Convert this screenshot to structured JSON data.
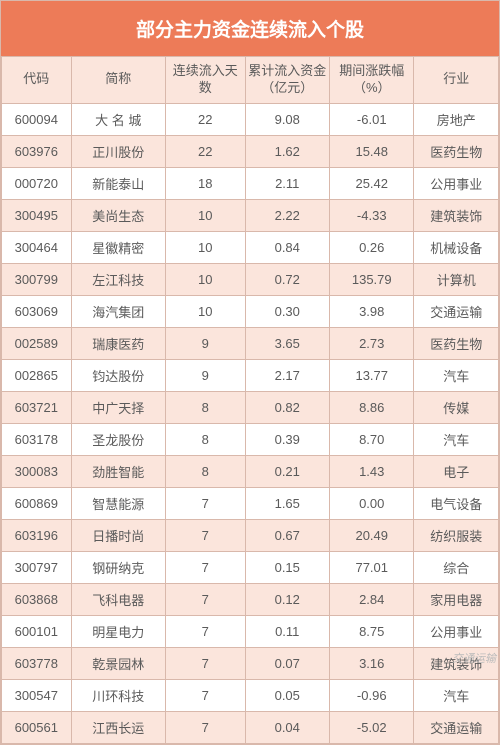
{
  "title": "部分主力资金连续流入个股",
  "title_bg": "#ed7b58",
  "title_color": "#ffffff",
  "title_fontsize": 19,
  "header_bg": "#fbe5dc",
  "header_fontsize": 13,
  "cell_fontsize": 13,
  "row_bg_even": "#ffffff",
  "row_bg_odd": "#fbe5dc",
  "border_color": "#d9b8ab",
  "text_color": "#5a5a5a",
  "col_widths": [
    "14%",
    "19%",
    "16%",
    "17%",
    "17%",
    "17%"
  ],
  "columns": [
    "代码",
    "简称",
    "连续流入天数",
    "累计流入资金（亿元）",
    "期间涨跌幅（%）",
    "行业"
  ],
  "rows": [
    [
      "600094",
      "大 名 城",
      "22",
      "9.08",
      "-6.01",
      "房地产"
    ],
    [
      "603976",
      "正川股份",
      "22",
      "1.62",
      "15.48",
      "医药生物"
    ],
    [
      "000720",
      "新能泰山",
      "18",
      "2.11",
      "25.42",
      "公用事业"
    ],
    [
      "300495",
      "美尚生态",
      "10",
      "2.22",
      "-4.33",
      "建筑装饰"
    ],
    [
      "300464",
      "星徽精密",
      "10",
      "0.84",
      "0.26",
      "机械设备"
    ],
    [
      "300799",
      "左江科技",
      "10",
      "0.72",
      "135.79",
      "计算机"
    ],
    [
      "603069",
      "海汽集团",
      "10",
      "0.30",
      "3.98",
      "交通运输"
    ],
    [
      "002589",
      "瑞康医药",
      "9",
      "3.65",
      "2.73",
      "医药生物"
    ],
    [
      "002865",
      "钧达股份",
      "9",
      "2.17",
      "13.77",
      "汽车"
    ],
    [
      "603721",
      "中广天择",
      "8",
      "0.82",
      "8.86",
      "传媒"
    ],
    [
      "603178",
      "圣龙股份",
      "8",
      "0.39",
      "8.70",
      "汽车"
    ],
    [
      "300083",
      "劲胜智能",
      "8",
      "0.21",
      "1.43",
      "电子"
    ],
    [
      "600869",
      "智慧能源",
      "7",
      "1.65",
      "0.00",
      "电气设备"
    ],
    [
      "603196",
      "日播时尚",
      "7",
      "0.67",
      "20.49",
      "纺织服装"
    ],
    [
      "300797",
      "钢研纳克",
      "7",
      "0.15",
      "77.01",
      "综合"
    ],
    [
      "603868",
      "飞科电器",
      "7",
      "0.12",
      "2.84",
      "家用电器"
    ],
    [
      "600101",
      "明星电力",
      "7",
      "0.11",
      "8.75",
      "公用事业"
    ],
    [
      "603778",
      "乾景园林",
      "7",
      "0.07",
      "3.16",
      "建筑装饰"
    ],
    [
      "300547",
      "川环科技",
      "7",
      "0.05",
      "-0.96",
      "汽车"
    ],
    [
      "600561",
      "江西长运",
      "7",
      "0.04",
      "-5.02",
      "交通运输"
    ]
  ],
  "watermark": "交通运输"
}
